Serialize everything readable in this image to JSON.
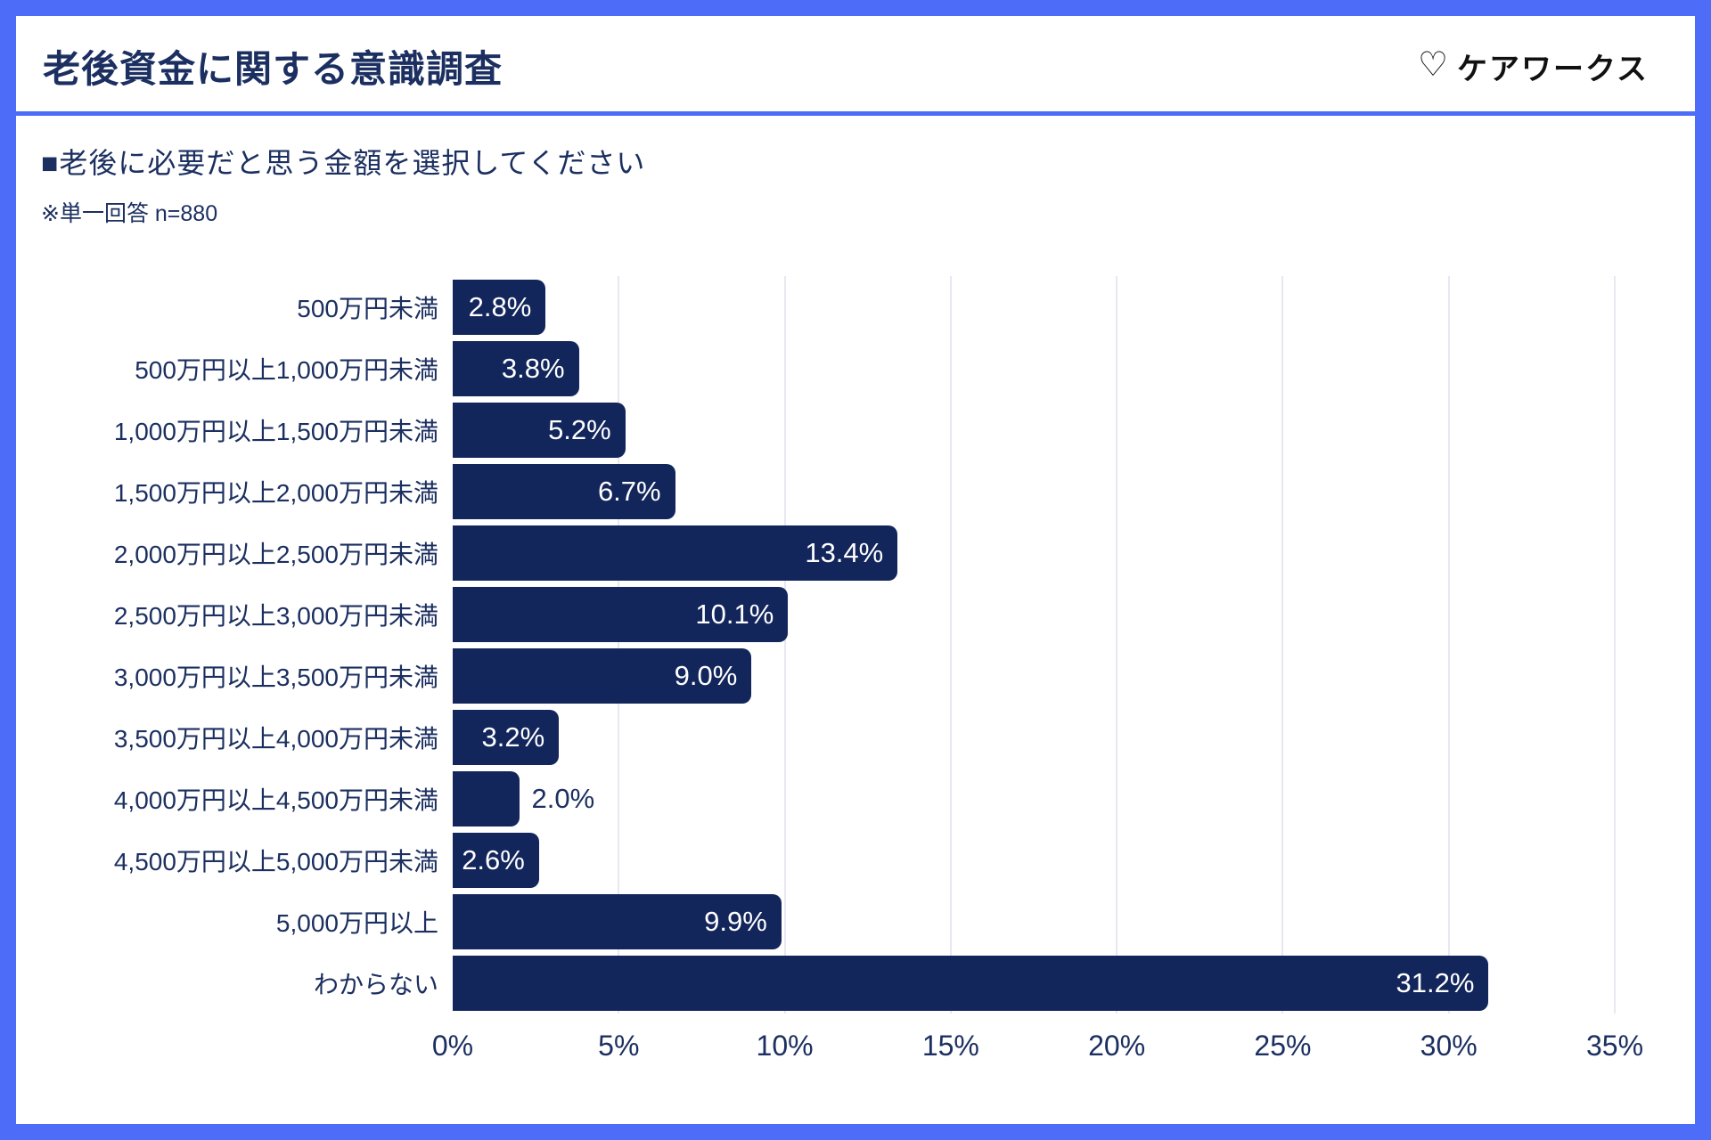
{
  "page": {
    "title": "老後資金に関する意識調査"
  },
  "logo": {
    "heart": "♡",
    "text": "ケアワークス"
  },
  "question": {
    "heading": "■老後に必要だと思う金額を選択してください",
    "note": "※単一回答 n=880"
  },
  "chart_data": {
    "type": "bar",
    "orientation": "horizontal",
    "title": "老後に必要だと思う金額を選択してください",
    "sample_note": "単一回答 n=880",
    "categories": [
      "500万円未満",
      "500万円以上1,000万円未満",
      "1,000万円以上1,500万円未満",
      "1,500万円以上2,000万円未満",
      "2,000万円以上2,500万円未満",
      "2,500万円以上3,000万円未満",
      "3,000万円以上3,500万円未満",
      "3,500万円以上4,000万円未満",
      "4,000万円以上4,500万円未満",
      "4,500万円以上5,000万円未満",
      "5,000万円以上",
      "わからない"
    ],
    "values": [
      2.8,
      3.8,
      5.2,
      6.7,
      13.4,
      10.1,
      9.0,
      3.2,
      2.0,
      2.6,
      9.9,
      31.2
    ],
    "value_labels": [
      "2.8%",
      "3.8%",
      "5.2%",
      "6.7%",
      "13.4%",
      "10.1%",
      "9.0%",
      "3.2%",
      "2.0%",
      "2.6%",
      "9.9%",
      "31.2%"
    ],
    "xlim": [
      0,
      35
    ],
    "x_ticks": [
      "0%",
      "5%",
      "10%",
      "15%",
      "20%",
      "25%",
      "30%",
      "35%"
    ],
    "grid": true,
    "legend": "none"
  },
  "colors": {
    "frame_blue": "#4d6cf8",
    "bar_navy": "#13265c",
    "text_navy": "#1b2f60",
    "gridline": "#e8e8f0",
    "value_label_inside": "#ffffff",
    "logo_black": "#111111",
    "card_background": "#ffffff"
  }
}
